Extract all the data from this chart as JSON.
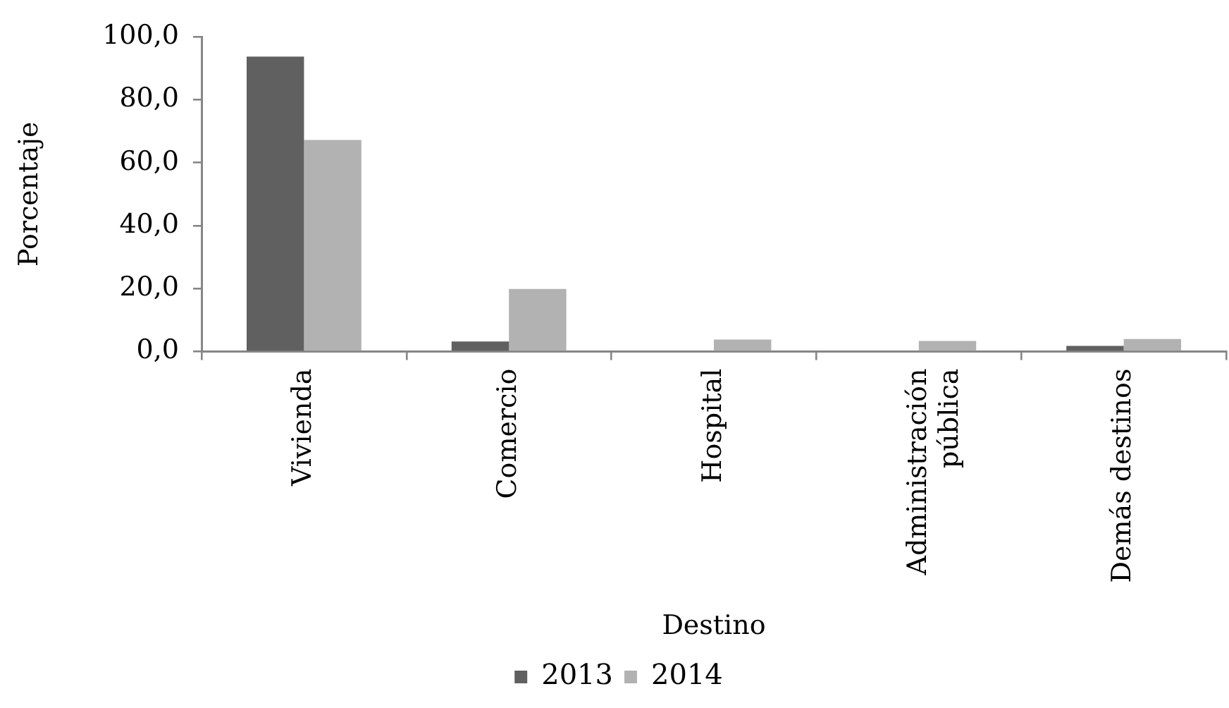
{
  "chart_data": {
    "type": "bar",
    "xlabel": "Destino",
    "ylabel": "Porcentaje",
    "categories": [
      "Vivienda",
      "Comercio",
      "Hospital",
      "Administración pública",
      "Demás destinos"
    ],
    "series": [
      {
        "name": "2013",
        "color": "#606060",
        "values": [
          93.7,
          3.2,
          0,
          0,
          1.8
        ]
      },
      {
        "name": "2014",
        "color": "#b2b2b2",
        "values": [
          67.2,
          19.9,
          3.8,
          3.4,
          4.0
        ]
      }
    ],
    "ylim": [
      0,
      100
    ],
    "yticks": [
      {
        "value": 0,
        "label": "0,0"
      },
      {
        "value": 20,
        "label": "20,0"
      },
      {
        "value": 40,
        "label": "40,0"
      },
      {
        "value": 60,
        "label": "60,0"
      },
      {
        "value": 80,
        "label": "80,0"
      },
      {
        "value": 100,
        "label": "100,0"
      }
    ],
    "grid": false,
    "legend": "bottom"
  }
}
